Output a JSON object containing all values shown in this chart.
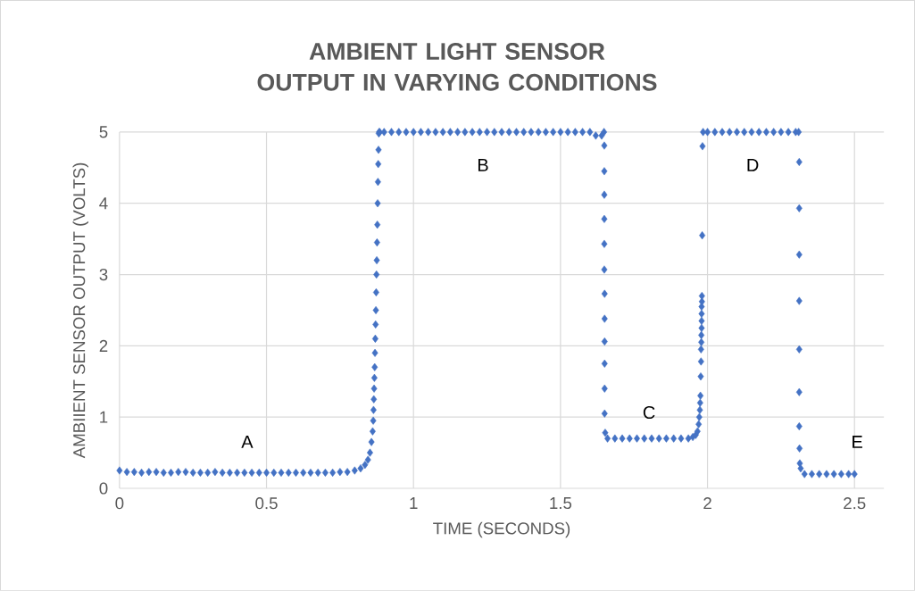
{
  "chart_data": {
    "type": "scatter",
    "title": "AMBIENT LIGHT SENSOR OUTPUT IN VARYING CONDITIONS",
    "xlabel": "TIME (SECONDS)",
    "ylabel": "AMBIIENT SENSOR OUTPUT (VOLTS)",
    "xlim": [
      0,
      2.6
    ],
    "ylim": [
      0,
      5
    ],
    "xticks": [
      0,
      0.5,
      1,
      1.5,
      2,
      2.5
    ],
    "yticks": [
      0,
      1,
      2,
      3,
      4,
      5
    ],
    "grid": true,
    "marker": "diamond",
    "annotations": [
      "A",
      "B",
      "C",
      "D",
      "E"
    ],
    "series": [
      {
        "color": "#4472c4",
        "x": [
          0,
          0.025,
          0.05,
          0.075,
          0.1,
          0.125,
          0.15,
          0.175,
          0.2,
          0.225,
          0.25,
          0.275,
          0.3,
          0.325,
          0.35,
          0.375,
          0.4,
          0.425,
          0.45,
          0.475,
          0.5,
          0.525,
          0.55,
          0.575,
          0.6,
          0.625,
          0.65,
          0.675,
          0.7,
          0.725,
          0.75,
          0.775,
          0.8,
          0.82,
          0.835,
          0.845,
          0.852,
          0.857,
          0.861,
          0.863,
          0.864,
          0.865,
          0.866,
          0.867,
          0.868,
          0.869,
          0.87,
          0.871,
          0.872,
          0.873,
          0.874,
          0.875,
          0.876,
          0.877,
          0.878,
          0.879,
          0.88,
          0.881,
          0.882,
          0.883,
          0.885,
          0.9,
          0.925,
          0.95,
          0.975,
          1,
          1.025,
          1.05,
          1.075,
          1.1,
          1.125,
          1.15,
          1.175,
          1.2,
          1.225,
          1.25,
          1.275,
          1.3,
          1.325,
          1.35,
          1.375,
          1.4,
          1.425,
          1.45,
          1.475,
          1.5,
          1.525,
          1.55,
          1.575,
          1.6,
          1.62,
          1.64,
          1.648,
          1.649,
          1.649,
          1.649,
          1.649,
          1.649,
          1.649,
          1.65,
          1.65,
          1.65,
          1.65,
          1.65,
          1.65,
          1.652,
          1.66,
          1.685,
          1.71,
          1.735,
          1.76,
          1.785,
          1.81,
          1.835,
          1.86,
          1.885,
          1.91,
          1.935,
          1.95,
          1.96,
          1.966,
          1.97,
          1.972,
          1.974,
          1.975,
          1.976,
          1.977,
          1.978,
          1.978,
          1.979,
          1.979,
          1.98,
          1.98,
          1.98,
          1.98,
          1.981,
          1.981,
          1.982,
          1.983,
          1.985,
          2,
          2.025,
          2.05,
          2.075,
          2.1,
          2.125,
          2.15,
          2.175,
          2.2,
          2.225,
          2.25,
          2.275,
          2.3,
          2.31,
          2.312,
          2.312,
          2.312,
          2.312,
          2.312,
          2.312,
          2.312,
          2.313,
          2.314,
          2.317,
          2.33,
          2.355,
          2.38,
          2.405,
          2.43,
          2.455,
          2.48,
          2.5
        ],
        "values": [
          0.25,
          0.23,
          0.23,
          0.22,
          0.23,
          0.23,
          0.22,
          0.22,
          0.23,
          0.23,
          0.22,
          0.22,
          0.22,
          0.23,
          0.22,
          0.22,
          0.22,
          0.22,
          0.22,
          0.22,
          0.22,
          0.22,
          0.22,
          0.22,
          0.22,
          0.22,
          0.22,
          0.22,
          0.22,
          0.22,
          0.23,
          0.23,
          0.25,
          0.28,
          0.33,
          0.4,
          0.5,
          0.65,
          0.8,
          0.95,
          1.1,
          1.25,
          1.4,
          1.55,
          1.7,
          1.9,
          2.1,
          2.3,
          2.5,
          2.75,
          3,
          3.2,
          3.45,
          3.7,
          4,
          4.3,
          4.55,
          4.75,
          4.98,
          5,
          5,
          5,
          5,
          5,
          5,
          5,
          5,
          5,
          5,
          5,
          5,
          5,
          5,
          5,
          5,
          5,
          5,
          5,
          5,
          5,
          5,
          5,
          5,
          5,
          5,
          5,
          5,
          5,
          5,
          5,
          4.95,
          4.95,
          5,
          4.81,
          4.45,
          4.12,
          3.78,
          3.43,
          3.07,
          2.73,
          2.38,
          2.06,
          1.75,
          1.4,
          1.05,
          0.78,
          0.7,
          0.7,
          0.7,
          0.7,
          0.7,
          0.7,
          0.7,
          0.7,
          0.7,
          0.7,
          0.7,
          0.7,
          0.72,
          0.75,
          0.8,
          0.9,
          1,
          1.1,
          1.2,
          1.3,
          1.57,
          1.78,
          1.95,
          2.05,
          2.15,
          2.25,
          2.35,
          2.45,
          2.55,
          2.62,
          2.7,
          3.55,
          4.8,
          5,
          5,
          5,
          5,
          5,
          5,
          5,
          5,
          5,
          5,
          5,
          5,
          5,
          5,
          5,
          4.58,
          3.93,
          3.28,
          2.63,
          1.95,
          1.35,
          0.87,
          0.56,
          0.35,
          0.28,
          0.2,
          0.2,
          0.2,
          0.2,
          0.2,
          0.2,
          0.2,
          0.2
        ]
      }
    ]
  }
}
